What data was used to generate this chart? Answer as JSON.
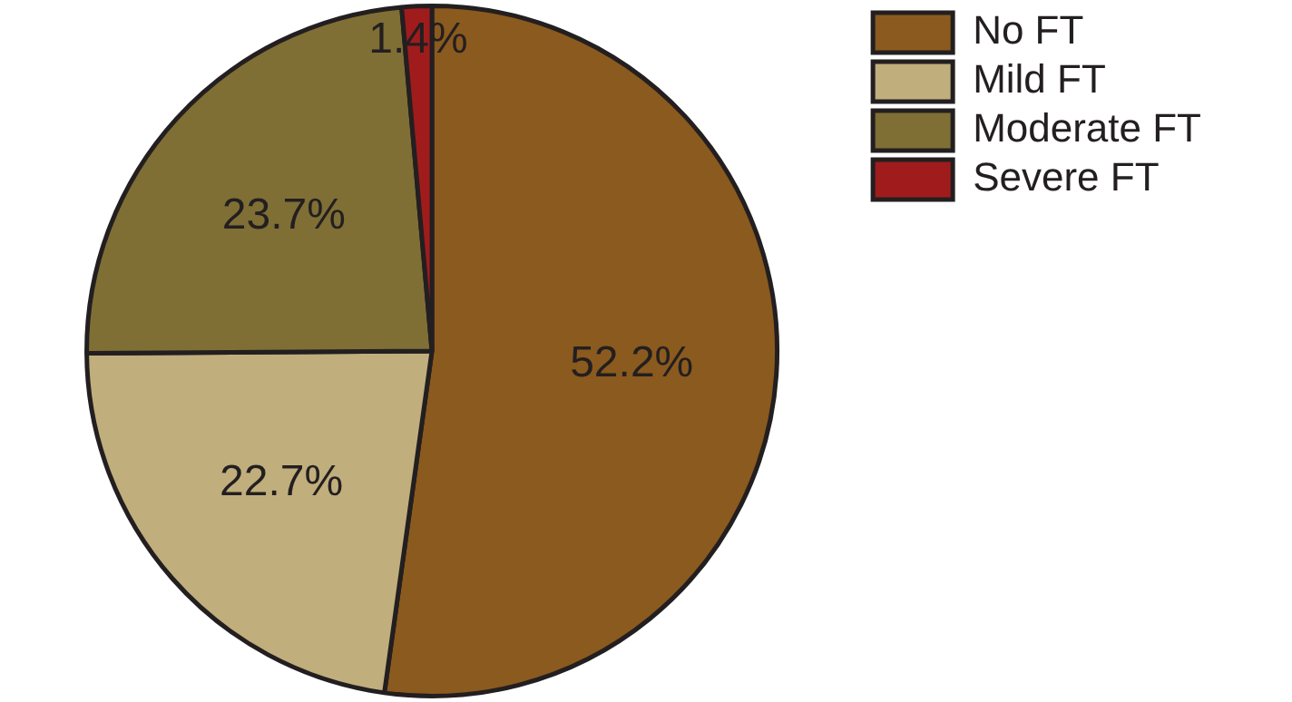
{
  "chart_data": {
    "type": "pie",
    "categories": [
      "No FT",
      "Mild FT",
      "Moderate FT",
      "Severe FT"
    ],
    "values": [
      52.2,
      22.7,
      23.7,
      1.4
    ],
    "colors": [
      "#8b5a1e",
      "#c0ae7c",
      "#7f6f35",
      "#a01c1c"
    ],
    "value_labels": [
      "52.2%",
      "22.7%",
      "23.7%",
      "1.4%"
    ],
    "legend": "top right"
  }
}
